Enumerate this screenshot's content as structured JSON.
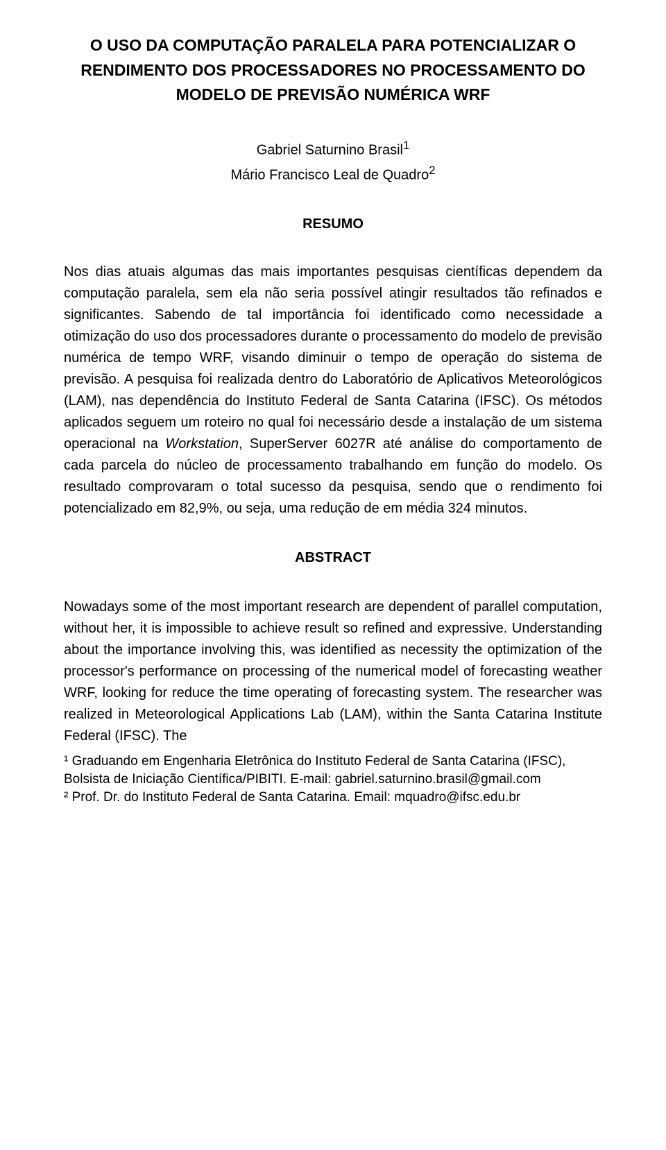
{
  "title": "O USO DA COMPUTAÇÃO PARALELA PARA POTENCIALIZAR O RENDIMENTO DOS PROCESSADORES NO PROCESSAMENTO DO MODELO DE PREVISÃO NUMÉRICA WRF",
  "authors": {
    "line1_name": "Gabriel Saturnino Brasil",
    "line1_sup": "1",
    "line2_name": "Mário Francisco Leal de Quadro",
    "line2_sup": "2"
  },
  "headings": {
    "resumo": "RESUMO",
    "abstract": "ABSTRACT"
  },
  "resumo": {
    "p1_a": "Nos dias atuais algumas das mais importantes pesquisas científicas dependem da computação paralela, sem ela não seria possível atingir resultados tão refinados e significantes. Sabendo de tal importância foi identificado como necessidade a otimização do uso dos processadores durante o processamento do modelo de previsão numérica de tempo WRF, visando diminuir o tempo de operação do sistema de previsão. A pesquisa foi realizada dentro do Laboratório de Aplicativos Meteorológicos (LAM), nas dependência do Instituto Federal de Santa Catarina (IFSC). Os métodos aplicados seguem um roteiro no qual foi necessário desde a instalação de um sistema operacional na ",
    "p1_italic": "Workstation",
    "p1_b": ", SuperServer 6027R até análise do comportamento de cada parcela do núcleo de processamento trabalhando em função do modelo. Os resultado comprovaram o total sucesso da pesquisa, sendo que o rendimento foi potencializado em 82,9%, ou seja, uma redução de em média 324 minutos."
  },
  "abstract": {
    "p1": "Nowadays some of the most important research are dependent of parallel computation, without her, it is impossible to achieve result so refined and expressive. Understanding about the importance involving this, was identified as necessity the optimization of the processor's performance on processing of the numerical model of forecasting weather WRF, looking for reduce the time operating of forecasting system. The researcher was realized in Meteorological Applications Lab (LAM), within the Santa Catarina Institute Federal (IFSC). The"
  },
  "footnotes": {
    "f1": "¹ Graduando em Engenharia Eletrônica do Instituto Federal de Santa Catarina (IFSC), Bolsista de Iniciação Científica/PIBITI. E-mail: gabriel.saturnino.brasil@gmail.com",
    "f2": "² Prof. Dr. do Instituto Federal de Santa Catarina. Email: mquadro@ifsc.edu.br"
  }
}
